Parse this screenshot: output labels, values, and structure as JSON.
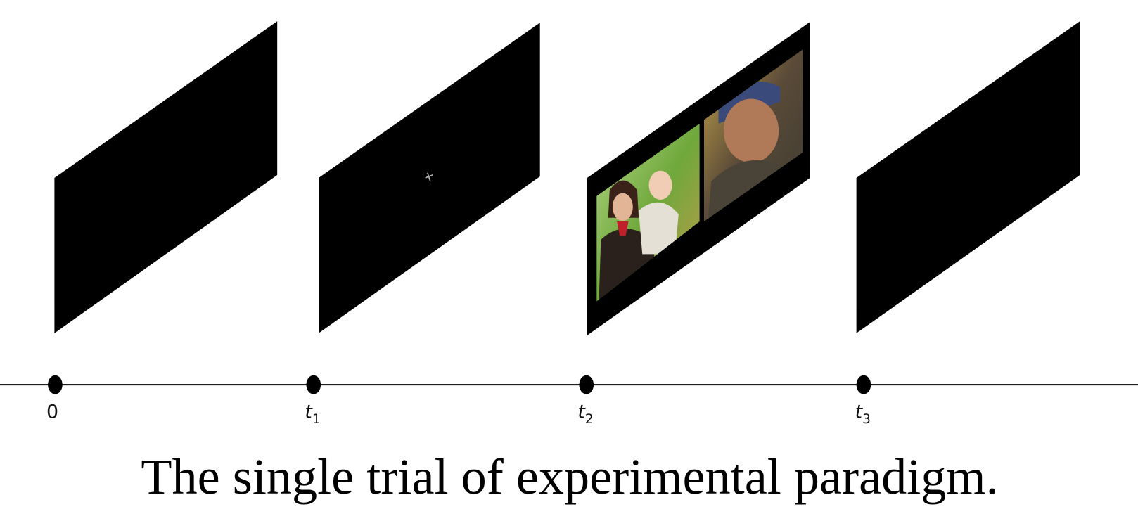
{
  "timeline": {
    "points": [
      {
        "label": "0"
      },
      {
        "label": "t",
        "subscript": "1"
      },
      {
        "label": "t",
        "subscript": "2"
      },
      {
        "label": "t",
        "subscript": "3"
      }
    ]
  },
  "caption": "The single trial of experimental paradigm."
}
